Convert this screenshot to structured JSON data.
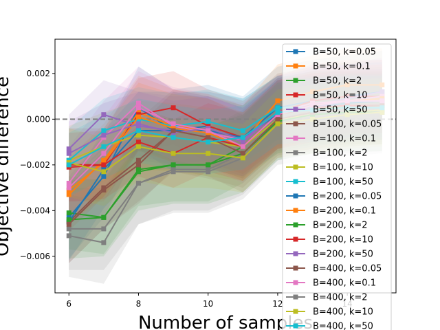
{
  "chart_data": {
    "type": "line",
    "xlabel": "Number of samples",
    "ylabel": "Objective difference",
    "xlim": [
      5.6,
      15.4
    ],
    "ylim": [
      -0.0076,
      0.0035
    ],
    "xticks": [
      6,
      8,
      10,
      12,
      14
    ],
    "yticks": [
      -0.006,
      -0.004,
      -0.002,
      0.0,
      0.002
    ],
    "ytick_labels": [
      "−0.006",
      "−0.004",
      "−0.002",
      "0.000",
      "0.002"
    ],
    "reference_line": {
      "y": 0,
      "style": "dashed",
      "color": "#808080"
    },
    "grid": false,
    "legend_position": "right",
    "x": [
      6,
      7,
      8,
      9,
      10,
      11,
      12,
      13,
      14,
      15
    ],
    "series": [
      {
        "name": "B=50, k=0.05",
        "color": "#1f77b4",
        "values": [
          -0.0043,
          -0.0025,
          0.0005,
          -0.0005,
          -0.0003,
          -0.0008,
          0.0005,
          0.0008,
          0.001,
          0.0012
        ],
        "band": 0.0018
      },
      {
        "name": "B=50, k=0.1",
        "color": "#ff7f0e",
        "values": [
          -0.0033,
          -0.0018,
          0.0003,
          -0.0003,
          -0.0005,
          -0.001,
          0.0008,
          0.0012,
          0.0015,
          0.0015
        ],
        "band": 0.0016
      },
      {
        "name": "B=50, k=2",
        "color": "#2ca02c",
        "values": [
          -0.0041,
          -0.0043,
          -0.0022,
          -0.002,
          -0.002,
          -0.0012,
          0.0002,
          0.0005,
          0.0005,
          0.0005
        ],
        "band": 0.0016
      },
      {
        "name": "B=50, k=10",
        "color": "#d62728",
        "values": [
          -0.002,
          -0.002,
          0.0002,
          0.0005,
          -0.0003,
          -0.0008,
          0.0003,
          0.0008,
          0.001,
          0.001
        ],
        "band": 0.0016
      },
      {
        "name": "B=50, k=50",
        "color": "#9467bd",
        "values": [
          -0.0013,
          0.0002,
          -0.0003,
          -0.0005,
          -0.0005,
          -0.001,
          0.0003,
          0.0006,
          0.0009,
          0.0012
        ],
        "band": 0.0015
      },
      {
        "name": "B=100, k=0.05",
        "color": "#8c564b",
        "values": [
          -0.0045,
          -0.003,
          -0.0018,
          -0.0005,
          -0.0008,
          -0.0012,
          0.0002,
          0.0005,
          0.0007,
          0.0008
        ],
        "band": 0.0018
      },
      {
        "name": "B=100, k=0.1",
        "color": "#e377c2",
        "values": [
          -0.0028,
          -0.0008,
          0.0007,
          -0.0003,
          -0.0006,
          -0.0009,
          0.0003,
          0.0007,
          0.0008,
          0.001
        ],
        "band": 0.0016
      },
      {
        "name": "B=100, k=2",
        "color": "#7f7f7f",
        "values": [
          -0.0048,
          -0.0048,
          -0.0028,
          -0.0022,
          -0.0022,
          -0.0015,
          0.0,
          0.0003,
          0.0003,
          0.0004
        ],
        "band": 0.0018
      },
      {
        "name": "B=100, k=10",
        "color": "#bcbd22",
        "values": [
          -0.0018,
          -0.0012,
          -0.0007,
          -0.0008,
          -0.001,
          -0.0012,
          0.0,
          0.0002,
          0.0003,
          0.0004
        ],
        "band": 0.0015
      },
      {
        "name": "B=100, k=50",
        "color": "#17becf",
        "values": [
          -0.0018,
          -0.0005,
          0.0,
          -0.0003,
          -0.0001,
          -0.0005,
          0.0005,
          0.0005,
          0.0006,
          0.0006
        ],
        "band": 0.0014
      },
      {
        "name": "B=200, k=0.05",
        "color": "#1f77b4",
        "values": [
          -0.0045,
          -0.0022,
          -0.0005,
          -0.0005,
          -0.0005,
          -0.0008,
          0.0002,
          0.0005,
          0.0007,
          0.0008
        ],
        "band": 0.0017
      },
      {
        "name": "B=200, k=0.1",
        "color": "#ff7f0e",
        "values": [
          -0.0031,
          -0.0019,
          0.0001,
          -0.0004,
          -0.0006,
          -0.0012,
          0.0002,
          0.0006,
          0.0008,
          0.0009
        ],
        "band": 0.0015
      },
      {
        "name": "B=200, k=2",
        "color": "#2ca02c",
        "values": [
          -0.0044,
          -0.0043,
          -0.0023,
          -0.002,
          -0.002,
          -0.0015,
          -0.0001,
          0.0002,
          0.0003,
          0.0003
        ],
        "band": 0.0017
      },
      {
        "name": "B=200, k=10",
        "color": "#d62728",
        "values": [
          -0.0021,
          -0.002,
          -0.001,
          -0.0015,
          -0.0008,
          -0.0012,
          0.0002,
          0.0005,
          0.0006,
          0.0006
        ],
        "band": 0.0015
      },
      {
        "name": "B=200, k=50",
        "color": "#9467bd",
        "values": [
          -0.0015,
          -0.0007,
          -0.0002,
          -0.0006,
          -0.0004,
          -0.0009,
          0.0003,
          0.0005,
          0.0008,
          0.0008
        ],
        "band": 0.0014
      },
      {
        "name": "B=400, k=0.05",
        "color": "#8c564b",
        "values": [
          -0.0046,
          -0.0031,
          -0.002,
          -0.0005,
          -0.0008,
          -0.0015,
          0.0,
          0.0003,
          0.0005,
          0.0006
        ],
        "band": 0.0017
      },
      {
        "name": "B=400, k=0.1",
        "color": "#e377c2",
        "values": [
          -0.003,
          -0.0015,
          0.0005,
          -0.0002,
          -0.0005,
          -0.0012,
          0.0002,
          0.0006,
          0.0008,
          0.0008
        ],
        "band": 0.0016
      },
      {
        "name": "B=400, k=2",
        "color": "#7f7f7f",
        "values": [
          -0.0051,
          -0.0054,
          -0.0028,
          -0.0023,
          -0.0023,
          -0.0017,
          -0.0002,
          0.0,
          0.0002,
          0.0003
        ],
        "band": 0.0018
      },
      {
        "name": "B=400, k=10",
        "color": "#bcbd22",
        "values": [
          -0.0019,
          -0.0023,
          -0.0012,
          -0.0015,
          -0.0015,
          -0.0017,
          -0.0002,
          0.0,
          0.0002,
          0.0003
        ],
        "band": 0.0015
      },
      {
        "name": "B=400, k=50",
        "color": "#17becf",
        "values": [
          -0.002,
          -0.0012,
          -0.0005,
          -0.0008,
          -0.001,
          -0.0008,
          0.0003,
          0.0004,
          0.0005,
          0.0005
        ],
        "band": 0.0014
      }
    ]
  }
}
